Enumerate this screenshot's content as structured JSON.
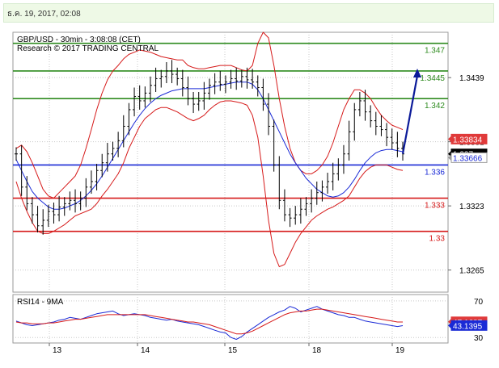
{
  "header": {
    "datetime": "ธ.ค. 19, 2017, 02:08"
  },
  "chart_data": [
    {
      "type": "line",
      "title": "GBP/USD - 30min - 3:08:08 (CET)",
      "subtitle": "Research © 2017 TRADING CENTRAL",
      "ylim": [
        1.3245,
        1.348
      ],
      "yticks": [
        "1.3439",
        "1.3381",
        "1.3323",
        "1.3265"
      ],
      "x_labels": [
        "13",
        "14",
        "15",
        "18",
        "19"
      ],
      "levels": [
        {
          "label": "1.347",
          "value": 1.347,
          "color": "#2e8b1f"
        },
        {
          "label": "1.3445",
          "value": 1.3445,
          "color": "#2e8b1f"
        },
        {
          "label": "1.342",
          "value": 1.342,
          "color": "#2e8b1f"
        },
        {
          "label": "1.336",
          "value": 1.336,
          "color": "#1a2ad6"
        },
        {
          "label": "1.333",
          "value": 1.333,
          "color": "#d61a1a"
        },
        {
          "label": "1.33",
          "value": 1.33,
          "color": "#d61a1a"
        }
      ],
      "price_tags": [
        {
          "label": "1.33834",
          "value": 1.33834,
          "bg": "#e03a3a",
          "fg": "#ffffff"
        },
        {
          "label": "1.337",
          "value": 1.337,
          "bg": "#000000",
          "fg": "#ffffff"
        },
        {
          "label": "1.33666",
          "value": 1.33666,
          "bg": "#ffffff",
          "fg": "#1a2ad6"
        }
      ],
      "forecast_arrow": {
        "from": 1.337,
        "to": 1.3445
      },
      "series": [
        {
          "role": "price",
          "color": "#000000",
          "values": [
            1.337,
            1.334,
            1.3325,
            1.3315,
            1.3305,
            1.331,
            1.3318,
            1.3315,
            1.3322,
            1.3325,
            1.3328,
            1.3325,
            1.333,
            1.334,
            1.3345,
            1.3355,
            1.3362,
            1.337,
            1.3375,
            1.3382,
            1.3395,
            1.341,
            1.3422,
            1.3418,
            1.3425,
            1.3432,
            1.3438,
            1.344,
            1.3445,
            1.3442,
            1.3438,
            1.343,
            1.342,
            1.3415,
            1.3418,
            1.3425,
            1.3432,
            1.3435,
            1.3433,
            1.3435,
            1.3438,
            1.3436,
            1.344,
            1.3437,
            1.3435,
            1.343,
            1.3415,
            1.3395,
            1.336,
            1.3328,
            1.3315,
            1.3312,
            1.3315,
            1.332,
            1.3325,
            1.333,
            1.3335,
            1.334,
            1.3345,
            1.3352,
            1.336,
            1.337,
            1.339,
            1.341,
            1.3418,
            1.3408,
            1.34,
            1.3395,
            1.3392,
            1.3385,
            1.338,
            1.3375,
            1.337
          ]
        },
        {
          "role": "bollinger-upper",
          "color": "#d61a1a",
          "values": [
            1.3375,
            1.3378,
            1.3372,
            1.3362,
            1.335,
            1.3338,
            1.3332,
            1.333,
            1.3335,
            1.334,
            1.3345,
            1.335,
            1.336,
            1.3375,
            1.3392,
            1.341,
            1.3425,
            1.3437,
            1.3445,
            1.345,
            1.3456,
            1.346,
            1.3462,
            1.3464,
            1.3463,
            1.3462,
            1.346,
            1.3458,
            1.3457,
            1.3456,
            1.3455,
            1.3455,
            1.345,
            1.3448,
            1.3447,
            1.3447,
            1.3448,
            1.3449,
            1.345,
            1.345,
            1.345,
            1.3448,
            1.3446,
            1.3445,
            1.345,
            1.347,
            1.348,
            1.3475,
            1.345,
            1.342,
            1.3395,
            1.3375,
            1.3362,
            1.3355,
            1.3352,
            1.3352,
            1.3355,
            1.336,
            1.3368,
            1.338,
            1.3395,
            1.341,
            1.342,
            1.3428,
            1.3428,
            1.3425,
            1.342,
            1.3412,
            1.3405,
            1.34,
            1.3396,
            1.3394,
            1.3392
          ]
        },
        {
          "role": "bollinger-lower",
          "color": "#d61a1a",
          "values": [
            1.3345,
            1.333,
            1.3318,
            1.3308,
            1.33,
            1.3298,
            1.3298,
            1.33,
            1.3303,
            1.3306,
            1.331,
            1.3314,
            1.3316,
            1.3318,
            1.332,
            1.3325,
            1.3332,
            1.3338,
            1.3345,
            1.3352,
            1.3362,
            1.3375,
            1.3385,
            1.3395,
            1.3402,
            1.3406,
            1.341,
            1.3412,
            1.3412,
            1.341,
            1.3408,
            1.3405,
            1.3402,
            1.34,
            1.3402,
            1.3405,
            1.341,
            1.3414,
            1.3417,
            1.3418,
            1.3418,
            1.3417,
            1.3416,
            1.3414,
            1.3405,
            1.3385,
            1.335,
            1.331,
            1.328,
            1.3268,
            1.327,
            1.328,
            1.329,
            1.3298,
            1.3304,
            1.331,
            1.3314,
            1.3317,
            1.332,
            1.3322,
            1.3325,
            1.3328,
            1.3332,
            1.334,
            1.3348,
            1.3354,
            1.3358,
            1.336,
            1.336,
            1.336,
            1.3358,
            1.3356,
            1.3355
          ]
        },
        {
          "role": "moving-average",
          "color": "#1a2ad6",
          "values": [
            1.3365,
            1.3355,
            1.3345,
            1.3336,
            1.333,
            1.3326,
            1.3322,
            1.332,
            1.332,
            1.3321,
            1.3323,
            1.3325,
            1.3328,
            1.3332,
            1.3337,
            1.3343,
            1.335,
            1.3358,
            1.3366,
            1.3374,
            1.3382,
            1.339,
            1.3398,
            1.3405,
            1.3411,
            1.3416,
            1.342,
            1.3423,
            1.3425,
            1.3427,
            1.3428,
            1.3429,
            1.3429,
            1.3429,
            1.3429,
            1.3429,
            1.343,
            1.3431,
            1.3432,
            1.3433,
            1.3434,
            1.3435,
            1.3435,
            1.3435,
            1.3433,
            1.3428,
            1.342,
            1.341,
            1.34,
            1.339,
            1.338,
            1.337,
            1.3362,
            1.3355,
            1.3348,
            1.3343,
            1.3338,
            1.3335,
            1.3332,
            1.3331,
            1.3332,
            1.3335,
            1.334,
            1.3347,
            1.3355,
            1.3362,
            1.3367,
            1.3371,
            1.3373,
            1.3374,
            1.3374,
            1.3373,
            1.3372
          ]
        }
      ]
    },
    {
      "type": "line",
      "title": "RSI14 - 9MA",
      "ylim": [
        24,
        77
      ],
      "yticks": [
        "70",
        "30"
      ],
      "value_tags": [
        {
          "label": "47.1687",
          "value": 47.1687,
          "bg": "#e03a3a",
          "fg": "#ffffff"
        },
        {
          "label": "43.1395",
          "value": 43.1395,
          "bg": "#1a2ad6",
          "fg": "#ffffff"
        }
      ],
      "series": [
        {
          "role": "rsi",
          "color": "#1a2ad6",
          "values": [
            48,
            46,
            44,
            43,
            44,
            45,
            46,
            47,
            49,
            50,
            52,
            51,
            50,
            52,
            54,
            56,
            57,
            58,
            59,
            56,
            54,
            55,
            56,
            55,
            54,
            52,
            51,
            50,
            49,
            50,
            48,
            47,
            46,
            45,
            44,
            42,
            40,
            38,
            36,
            35,
            30,
            28,
            31,
            36,
            40,
            44,
            48,
            52,
            55,
            58,
            60,
            64,
            62,
            58,
            60,
            62,
            64,
            61,
            59,
            57,
            55,
            54,
            52,
            52,
            50,
            48,
            47,
            46,
            45,
            44,
            43,
            42,
            43
          ]
        },
        {
          "role": "rsi-ma",
          "color": "#d61a1a",
          "values": [
            47,
            46,
            46,
            45,
            45,
            45,
            46,
            46,
            47,
            48,
            49,
            50,
            50,
            51,
            52,
            53,
            54,
            55,
            55,
            55,
            55,
            55,
            55,
            55,
            55,
            54,
            53,
            52,
            51,
            50,
            49,
            48,
            47,
            47,
            46,
            45,
            44,
            42,
            40,
            38,
            36,
            34,
            34,
            35,
            37,
            40,
            43,
            46,
            49,
            52,
            55,
            57,
            58,
            59,
            59,
            60,
            61,
            61,
            60,
            59,
            58,
            57,
            56,
            55,
            54,
            53,
            52,
            51,
            50,
            49,
            48,
            47,
            47
          ]
        }
      ]
    }
  ]
}
